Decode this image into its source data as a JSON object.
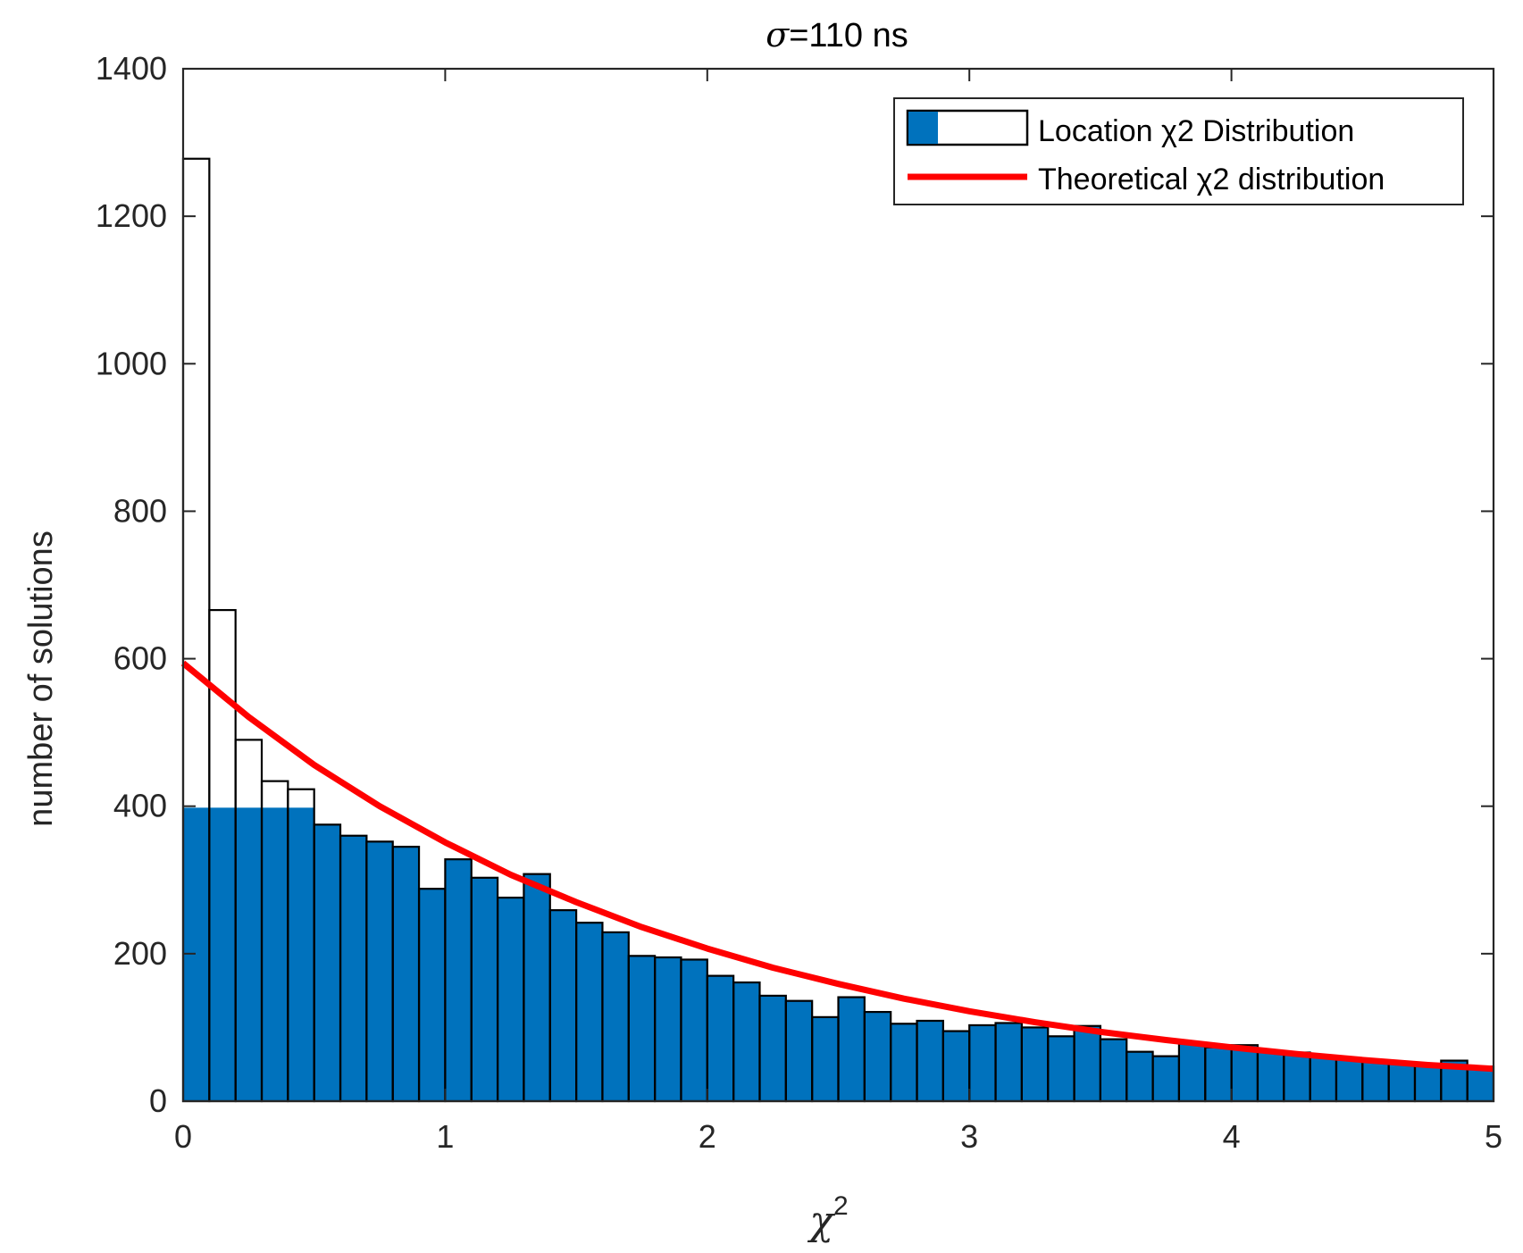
{
  "chart_data": {
    "type": "bar",
    "title_prefix": "σ",
    "title_rest": "=110 ns",
    "xlabel_symbol": "χ",
    "xlabel_superscript": "2",
    "ylabel": "number of solutions",
    "xlim": [
      0,
      5
    ],
    "ylim": [
      0,
      1400
    ],
    "xticks": [
      "0",
      "1",
      "2",
      "3",
      "4",
      "5"
    ],
    "yticks": [
      "0",
      "200",
      "400",
      "600",
      "800",
      "1000",
      "1200",
      "1400"
    ],
    "grid": false,
    "legend_position": "top-right",
    "bin_width": 0.1,
    "series": [
      {
        "name": "Location χ2 Distribution",
        "kind": "histogram",
        "color": "#0072BD",
        "x_start": [
          0,
          0.1,
          0.2,
          0.3,
          0.4,
          0.5,
          0.6,
          0.7,
          0.8,
          0.9,
          1.0,
          1.1,
          1.2,
          1.3,
          1.4,
          1.5,
          1.6,
          1.7,
          1.8,
          1.9,
          2.0,
          2.1,
          2.2,
          2.3,
          2.4,
          2.5,
          2.6,
          2.7,
          2.8,
          2.9,
          3.0,
          3.1,
          3.2,
          3.3,
          3.4,
          3.5,
          3.6,
          3.7,
          3.8,
          3.9,
          4.0,
          4.1,
          4.2,
          4.3,
          4.4,
          4.5,
          4.6,
          4.7,
          4.8,
          4.9
        ],
        "values": [
          1278,
          666,
          490,
          434,
          423,
          375,
          360,
          352,
          345,
          288,
          328,
          303,
          276,
          308,
          259,
          242,
          229,
          197,
          195,
          192,
          170,
          161,
          143,
          136,
          114,
          141,
          121,
          105,
          109,
          95,
          103,
          106,
          100,
          88,
          102,
          84,
          67,
          61,
          78,
          73,
          76,
          68,
          66,
          60,
          57,
          55,
          53,
          48,
          55,
          47
        ]
      },
      {
        "name": "Theoretical χ2 distribution",
        "kind": "line",
        "color": "#FF0000",
        "x": [
          0,
          0.25,
          0.5,
          0.75,
          1.0,
          1.25,
          1.5,
          1.75,
          2.0,
          2.25,
          2.5,
          2.75,
          3.0,
          3.25,
          3.5,
          3.75,
          4.0,
          4.25,
          4.5,
          4.75,
          5.0
        ],
        "values": [
          594,
          521,
          456,
          400,
          351,
          307,
          270,
          236,
          207,
          181,
          159,
          139,
          122,
          107,
          94,
          83,
          73,
          64,
          56,
          49,
          44
        ]
      }
    ],
    "fill_cap": 398
  }
}
